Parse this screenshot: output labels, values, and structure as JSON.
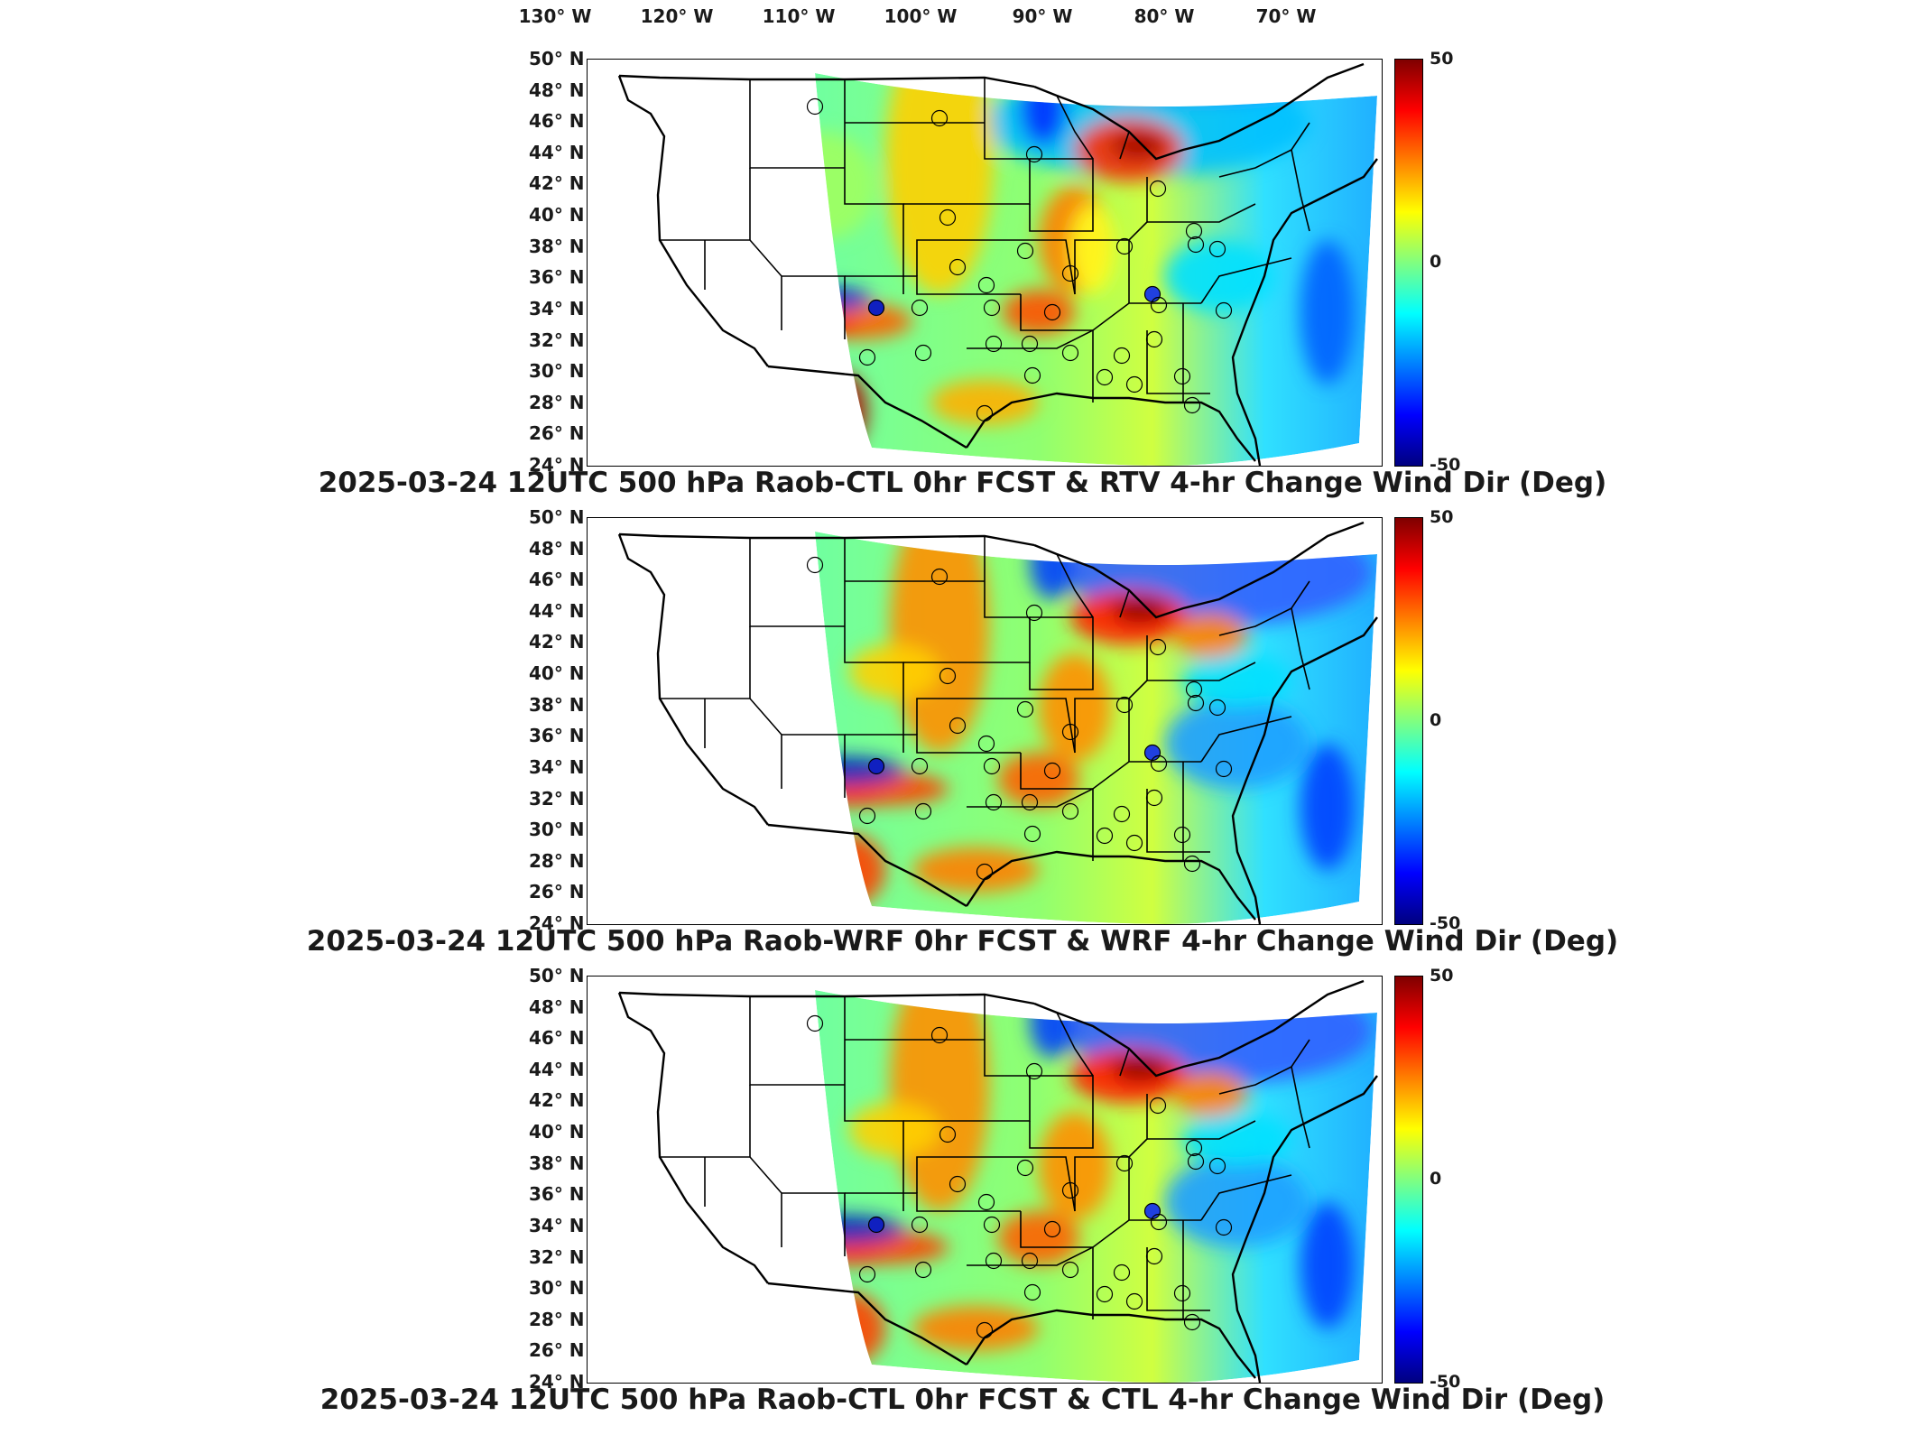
{
  "map": {
    "longitude_labels": [
      "130",
      "120",
      "110",
      "100",
      "90",
      "80",
      "70"
    ],
    "longitude_suffix": "W",
    "latitude_labels": [
      "50",
      "48",
      "46",
      "44",
      "42",
      "40",
      "38",
      "36",
      "34",
      "32",
      "30",
      "28",
      "26",
      "24"
    ],
    "latitude_suffix": "N",
    "degree_symbol": "°"
  },
  "colorbar": {
    "labels": [
      "50",
      "0",
      "-50"
    ],
    "colormap": "jet",
    "colors": [
      "#00007f",
      "#0000ff",
      "#0080ff",
      "#00ffff",
      "#80ff80",
      "#ffff00",
      "#ff8000",
      "#ff0000",
      "#7f0000"
    ]
  },
  "panels": [
    {
      "title": "2025-03-24 12UTC 500 hPa Raob-CTL 0hr FCST & RTV 4-hr Change Wind Dir (Deg)"
    },
    {
      "title": "2025-03-24 12UTC 500 hPa Raob-WRF 0hr FCST & WRF 4-hr Change Wind Dir (Deg)"
    },
    {
      "title": "2025-03-24 12UTC 500 hPa Raob-CTL 0hr FCST & CTL 4-hr Change Wind Dir (Deg)"
    }
  ]
}
